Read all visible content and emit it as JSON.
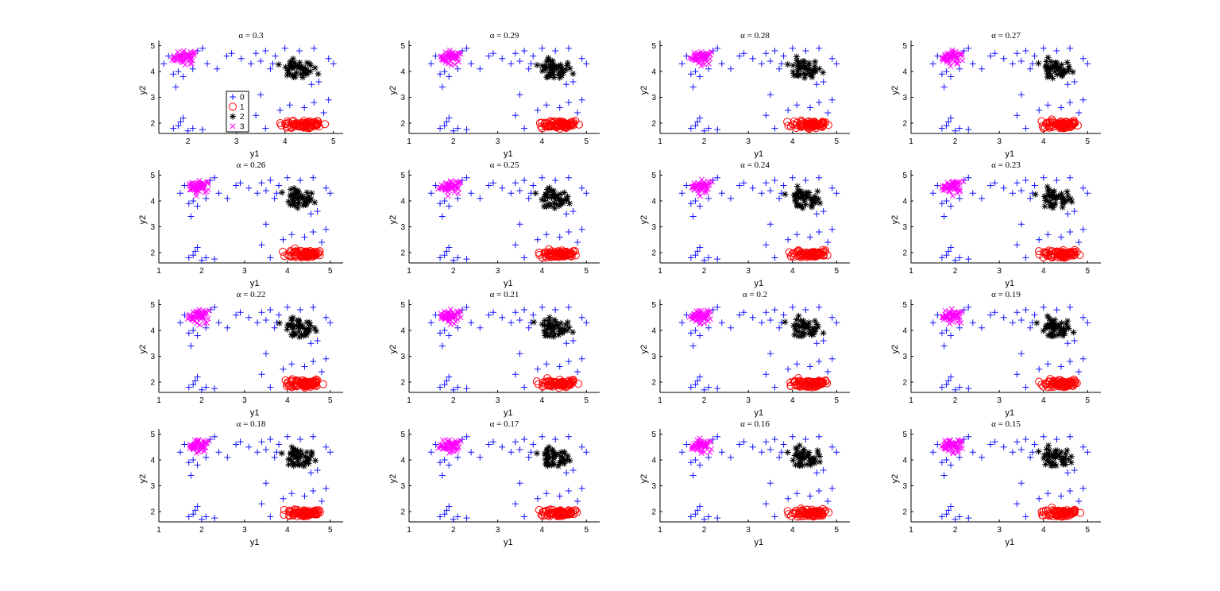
{
  "chart_data": {
    "type": "scatter",
    "layout": "4x4 grid of subplots",
    "xlabel": "y1",
    "ylabel": "y2",
    "yticks": [
      2,
      3,
      4,
      5
    ],
    "ylim": [
      1.6,
      5.2
    ],
    "legend": {
      "placement": "inside first subplot, center",
      "entries": [
        "0",
        "1",
        "2",
        "3"
      ]
    },
    "series_style": [
      {
        "label": "0",
        "marker": "plus",
        "color": "#1414ff"
      },
      {
        "label": "1",
        "marker": "circle",
        "color": "#ff0000"
      },
      {
        "label": "2",
        "marker": "asterisk",
        "color": "#000000"
      },
      {
        "label": "3",
        "marker": "cross",
        "color": "#ff00ff"
      }
    ],
    "clusters": [
      {
        "label": "3",
        "center": [
          1.95,
          4.55
        ],
        "spread": [
          0.22,
          0.22
        ],
        "count": 50
      },
      {
        "label": "2",
        "center": [
          4.25,
          4.05
        ],
        "spread": [
          0.35,
          0.35
        ],
        "count": 45
      },
      {
        "label": "1",
        "center": [
          4.4,
          1.95
        ],
        "spread": [
          0.38,
          0.14
        ],
        "count": 75
      },
      {
        "label": "0",
        "points": [
          [
            1.5,
            4.3
          ],
          [
            1.6,
            4.6
          ],
          [
            1.7,
            3.9
          ],
          [
            1.75,
            3.4
          ],
          [
            1.8,
            4.0
          ],
          [
            1.9,
            3.8
          ],
          [
            2.1,
            4.1
          ],
          [
            2.2,
            4.8
          ],
          [
            2.3,
            4.9
          ],
          [
            2.4,
            4.3
          ],
          [
            2.6,
            4.1
          ],
          [
            2.8,
            4.6
          ],
          [
            2.9,
            4.7
          ],
          [
            3.1,
            4.5
          ],
          [
            3.3,
            4.3
          ],
          [
            3.4,
            4.7
          ],
          [
            3.5,
            4.4
          ],
          [
            3.6,
            4.8
          ],
          [
            3.7,
            4.1
          ],
          [
            3.75,
            4.3
          ],
          [
            4.0,
            4.9
          ],
          [
            4.3,
            4.8
          ],
          [
            4.6,
            4.9
          ],
          [
            4.9,
            4.5
          ],
          [
            5.0,
            4.3
          ],
          [
            3.5,
            3.1
          ],
          [
            3.4,
            2.3
          ],
          [
            3.9,
            2.5
          ],
          [
            4.1,
            2.7
          ],
          [
            4.4,
            2.6
          ],
          [
            4.6,
            2.8
          ],
          [
            4.9,
            2.9
          ],
          [
            4.8,
            2.4
          ],
          [
            1.7,
            1.8
          ],
          [
            1.8,
            1.9
          ],
          [
            1.9,
            2.2
          ],
          [
            2.0,
            1.7
          ],
          [
            2.1,
            1.8
          ],
          [
            1.85,
            2.05
          ],
          [
            2.3,
            1.75
          ],
          [
            3.6,
            1.8
          ],
          [
            3.8,
            4.6
          ],
          [
            4.55,
            3.5
          ],
          [
            4.7,
            3.6
          ]
        ]
      }
    ],
    "subplots": [
      {
        "title": "α = 0.3",
        "xticks": [
          2,
          3,
          4,
          5
        ],
        "xlim": [
          1.4,
          5.2
        ]
      },
      {
        "title": "α = 0.29",
        "xticks": [
          1,
          2,
          3,
          4,
          5
        ],
        "xlim": [
          1.0,
          5.3
        ]
      },
      {
        "title": "α = 0.28",
        "xticks": [
          1,
          2,
          3,
          4,
          5
        ],
        "xlim": [
          1.0,
          5.3
        ]
      },
      {
        "title": "α = 0.27",
        "xticks": [
          1,
          2,
          3,
          4,
          5
        ],
        "xlim": [
          1.0,
          5.3
        ]
      },
      {
        "title": "α = 0.26",
        "xticks": [
          1,
          2,
          3,
          4,
          5
        ],
        "xlim": [
          1.0,
          5.3
        ]
      },
      {
        "title": "α = 0.25",
        "xticks": [
          1,
          2,
          3,
          4,
          5
        ],
        "xlim": [
          1.0,
          5.3
        ]
      },
      {
        "title": "α = 0.24",
        "xticks": [
          1,
          2,
          3,
          4,
          5
        ],
        "xlim": [
          1.0,
          5.3
        ]
      },
      {
        "title": "α = 0.23",
        "xticks": [
          1,
          2,
          3,
          4,
          5
        ],
        "xlim": [
          1.0,
          5.3
        ]
      },
      {
        "title": "α = 0.22",
        "xticks": [
          1,
          2,
          3,
          4,
          5
        ],
        "xlim": [
          1.0,
          5.3
        ]
      },
      {
        "title": "α = 0.21",
        "xticks": [
          1,
          2,
          3,
          4,
          5
        ],
        "xlim": [
          1.0,
          5.3
        ]
      },
      {
        "title": "α = 0.2",
        "xticks": [
          1,
          2,
          3,
          4,
          5
        ],
        "xlim": [
          1.0,
          5.3
        ]
      },
      {
        "title": "α = 0.19",
        "xticks": [
          1,
          2,
          3,
          4,
          5
        ],
        "xlim": [
          1.0,
          5.3
        ]
      },
      {
        "title": "α = 0.18",
        "xticks": [
          1,
          2,
          3,
          4,
          5
        ],
        "xlim": [
          1.0,
          5.3
        ]
      },
      {
        "title": "α = 0.17",
        "xticks": [
          1,
          2,
          3,
          4,
          5
        ],
        "xlim": [
          1.0,
          5.3
        ]
      },
      {
        "title": "α = 0.16",
        "xticks": [
          1,
          2,
          3,
          4,
          5
        ],
        "xlim": [
          1.0,
          5.3
        ]
      },
      {
        "title": "α = 0.15",
        "xticks": [
          1,
          2,
          3,
          4,
          5
        ],
        "xlim": [
          1.0,
          5.3
        ]
      }
    ]
  }
}
